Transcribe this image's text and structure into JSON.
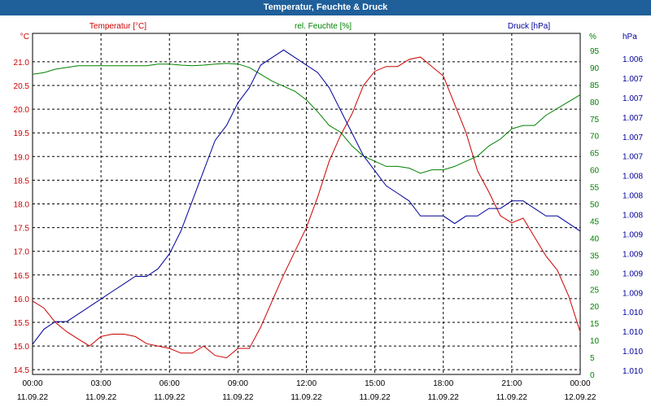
{
  "title": "Temperatur, Feuchte & Druck",
  "colors": {
    "titlebar": "#1f5f9a",
    "temperature": "#cc0000",
    "humidity": "#008000",
    "pressure": "#00009a",
    "grid": "#000000"
  },
  "chart_data": {
    "type": "line",
    "title": "Temperatur, Feuchte & Druck",
    "grid": true,
    "x_ticks": [
      {
        "time": "00:00",
        "date": "11.09.22"
      },
      {
        "time": "03:00",
        "date": "11.09.22"
      },
      {
        "time": "06:00",
        "date": "11.09.22"
      },
      {
        "time": "09:00",
        "date": "11.09.22"
      },
      {
        "time": "12:00",
        "date": "11.09.22"
      },
      {
        "time": "15:00",
        "date": "11.09.22"
      },
      {
        "time": "18:00",
        "date": "11.09.22"
      },
      {
        "time": "21:00",
        "date": "11.09.22"
      },
      {
        "time": "00:00",
        "date": "12.09.22"
      }
    ],
    "xlim_hours": [
      0,
      24
    ],
    "axes": {
      "temperature": {
        "label": "Temperatur [°C]",
        "unit": "°C",
        "ylim": [
          14.4,
          21.6
        ],
        "ticks": [
          "14.5",
          "15.0",
          "15.5",
          "16.0",
          "16.5",
          "17.0",
          "17.5",
          "18.0",
          "18.5",
          "19.0",
          "19.5",
          "20.0",
          "20.5",
          "21.0"
        ]
      },
      "humidity": {
        "label": "rel. Feuchte [%]",
        "unit": "%",
        "ylim": [
          0,
          100
        ],
        "ticks": [
          "0",
          "5",
          "10",
          "15",
          "20",
          "25",
          "30",
          "35",
          "40",
          "45",
          "50",
          "55",
          "60",
          "65",
          "70",
          "75",
          "80",
          "85",
          "90",
          "95",
          "100"
        ]
      },
      "pressure": {
        "label": "Druck [hPa]",
        "unit": "hPa",
        "ticks": [
          "1.006",
          "1.007",
          "1.007",
          "1.007",
          "1.007",
          "1.007",
          "1.008",
          "1.008",
          "1.008",
          "1.009",
          "1.009",
          "1.009",
          "1.009",
          "1.010",
          "1.010",
          "1.010",
          "1.010"
        ]
      }
    },
    "series": [
      {
        "name": "Temperatur [°C]",
        "axis": "temperature",
        "x": [
          0,
          0.5,
          1,
          1.5,
          2,
          2.5,
          3,
          3.5,
          4,
          4.5,
          5,
          5.5,
          6,
          6.5,
          7,
          7.5,
          8,
          8.5,
          9,
          9.5,
          10,
          10.5,
          11,
          11.5,
          12,
          12.5,
          13,
          13.5,
          14,
          14.5,
          15,
          15.5,
          16,
          16.5,
          17,
          17.5,
          18,
          18.5,
          19,
          19.5,
          20,
          20.5,
          21,
          21.5,
          22,
          22.5,
          23,
          23.5,
          24
        ],
        "values": [
          15.95,
          15.8,
          15.5,
          15.3,
          15.15,
          15.0,
          15.2,
          15.25,
          15.25,
          15.2,
          15.05,
          15.0,
          14.95,
          14.85,
          14.85,
          15.0,
          14.8,
          14.75,
          14.95,
          14.95,
          15.4,
          15.95,
          16.5,
          17.0,
          17.5,
          18.15,
          18.9,
          19.45,
          19.9,
          20.5,
          20.8,
          20.9,
          20.9,
          21.05,
          21.1,
          20.9,
          20.7,
          20.1,
          19.5,
          18.7,
          18.25,
          17.75,
          17.6,
          17.7,
          17.3,
          16.9,
          16.6,
          16.05,
          15.3
        ]
      },
      {
        "name": "rel. Feuchte [%]",
        "axis": "humidity",
        "x": [
          0,
          0.5,
          1,
          1.5,
          2,
          2.5,
          3,
          3.5,
          4,
          4.5,
          5,
          5.5,
          6,
          6.5,
          7,
          7.5,
          8,
          8.5,
          9,
          9.5,
          10,
          10.5,
          11,
          11.5,
          12,
          12.5,
          13,
          13.5,
          14,
          14.5,
          15,
          15.5,
          16,
          16.5,
          17,
          17.5,
          18,
          18.5,
          19,
          19.5,
          20,
          20.5,
          21,
          21.5,
          22,
          22.5,
          23,
          23.5,
          24
        ],
        "values": [
          88,
          88.5,
          89.5,
          90,
          90.5,
          90.5,
          90.5,
          90.5,
          90.5,
          90.5,
          90.5,
          91,
          91,
          90.7,
          90.5,
          90.7,
          91,
          91.2,
          91,
          90,
          88,
          86,
          84.5,
          83,
          80.5,
          77,
          73,
          71,
          67,
          64,
          62.5,
          61,
          61,
          60.5,
          59,
          60,
          60,
          61,
          62.5,
          64,
          67,
          69,
          72,
          73,
          73,
          76,
          78,
          80,
          82
        ]
      },
      {
        "name": "Druck [hPa]",
        "axis": "pressure",
        "x": [
          0,
          0.5,
          1,
          1.5,
          2,
          2.5,
          3,
          3.5,
          4,
          4.5,
          5,
          5.5,
          6,
          6.5,
          7,
          7.5,
          8,
          8.5,
          9,
          9.5,
          10,
          10.5,
          11,
          11.5,
          12,
          12.5,
          13,
          13.5,
          14,
          14.5,
          15,
          15.5,
          16,
          16.5,
          17,
          17.5,
          18,
          18.5,
          19,
          19.5,
          20,
          20.5,
          21,
          21.5,
          22,
          22.5,
          23,
          23.5,
          24
        ],
        "values": [
          1.0066,
          1.0068,
          1.0069,
          1.0069,
          1.007,
          1.0071,
          1.0072,
          1.0073,
          1.0074,
          1.0075,
          1.0075,
          1.0076,
          1.0078,
          1.0081,
          1.0085,
          1.0089,
          1.0093,
          1.0095,
          1.0098,
          1.01,
          1.0103,
          1.0104,
          1.0105,
          1.0104,
          1.0103,
          1.0102,
          1.01,
          1.0097,
          1.0094,
          1.0091,
          1.0089,
          1.0087,
          1.0086,
          1.0085,
          1.0083,
          1.0083,
          1.0083,
          1.0082,
          1.0083,
          1.0083,
          1.0084,
          1.0084,
          1.0085,
          1.0085,
          1.0084,
          1.0083,
          1.0083,
          1.0082,
          1.0081
        ]
      }
    ]
  }
}
